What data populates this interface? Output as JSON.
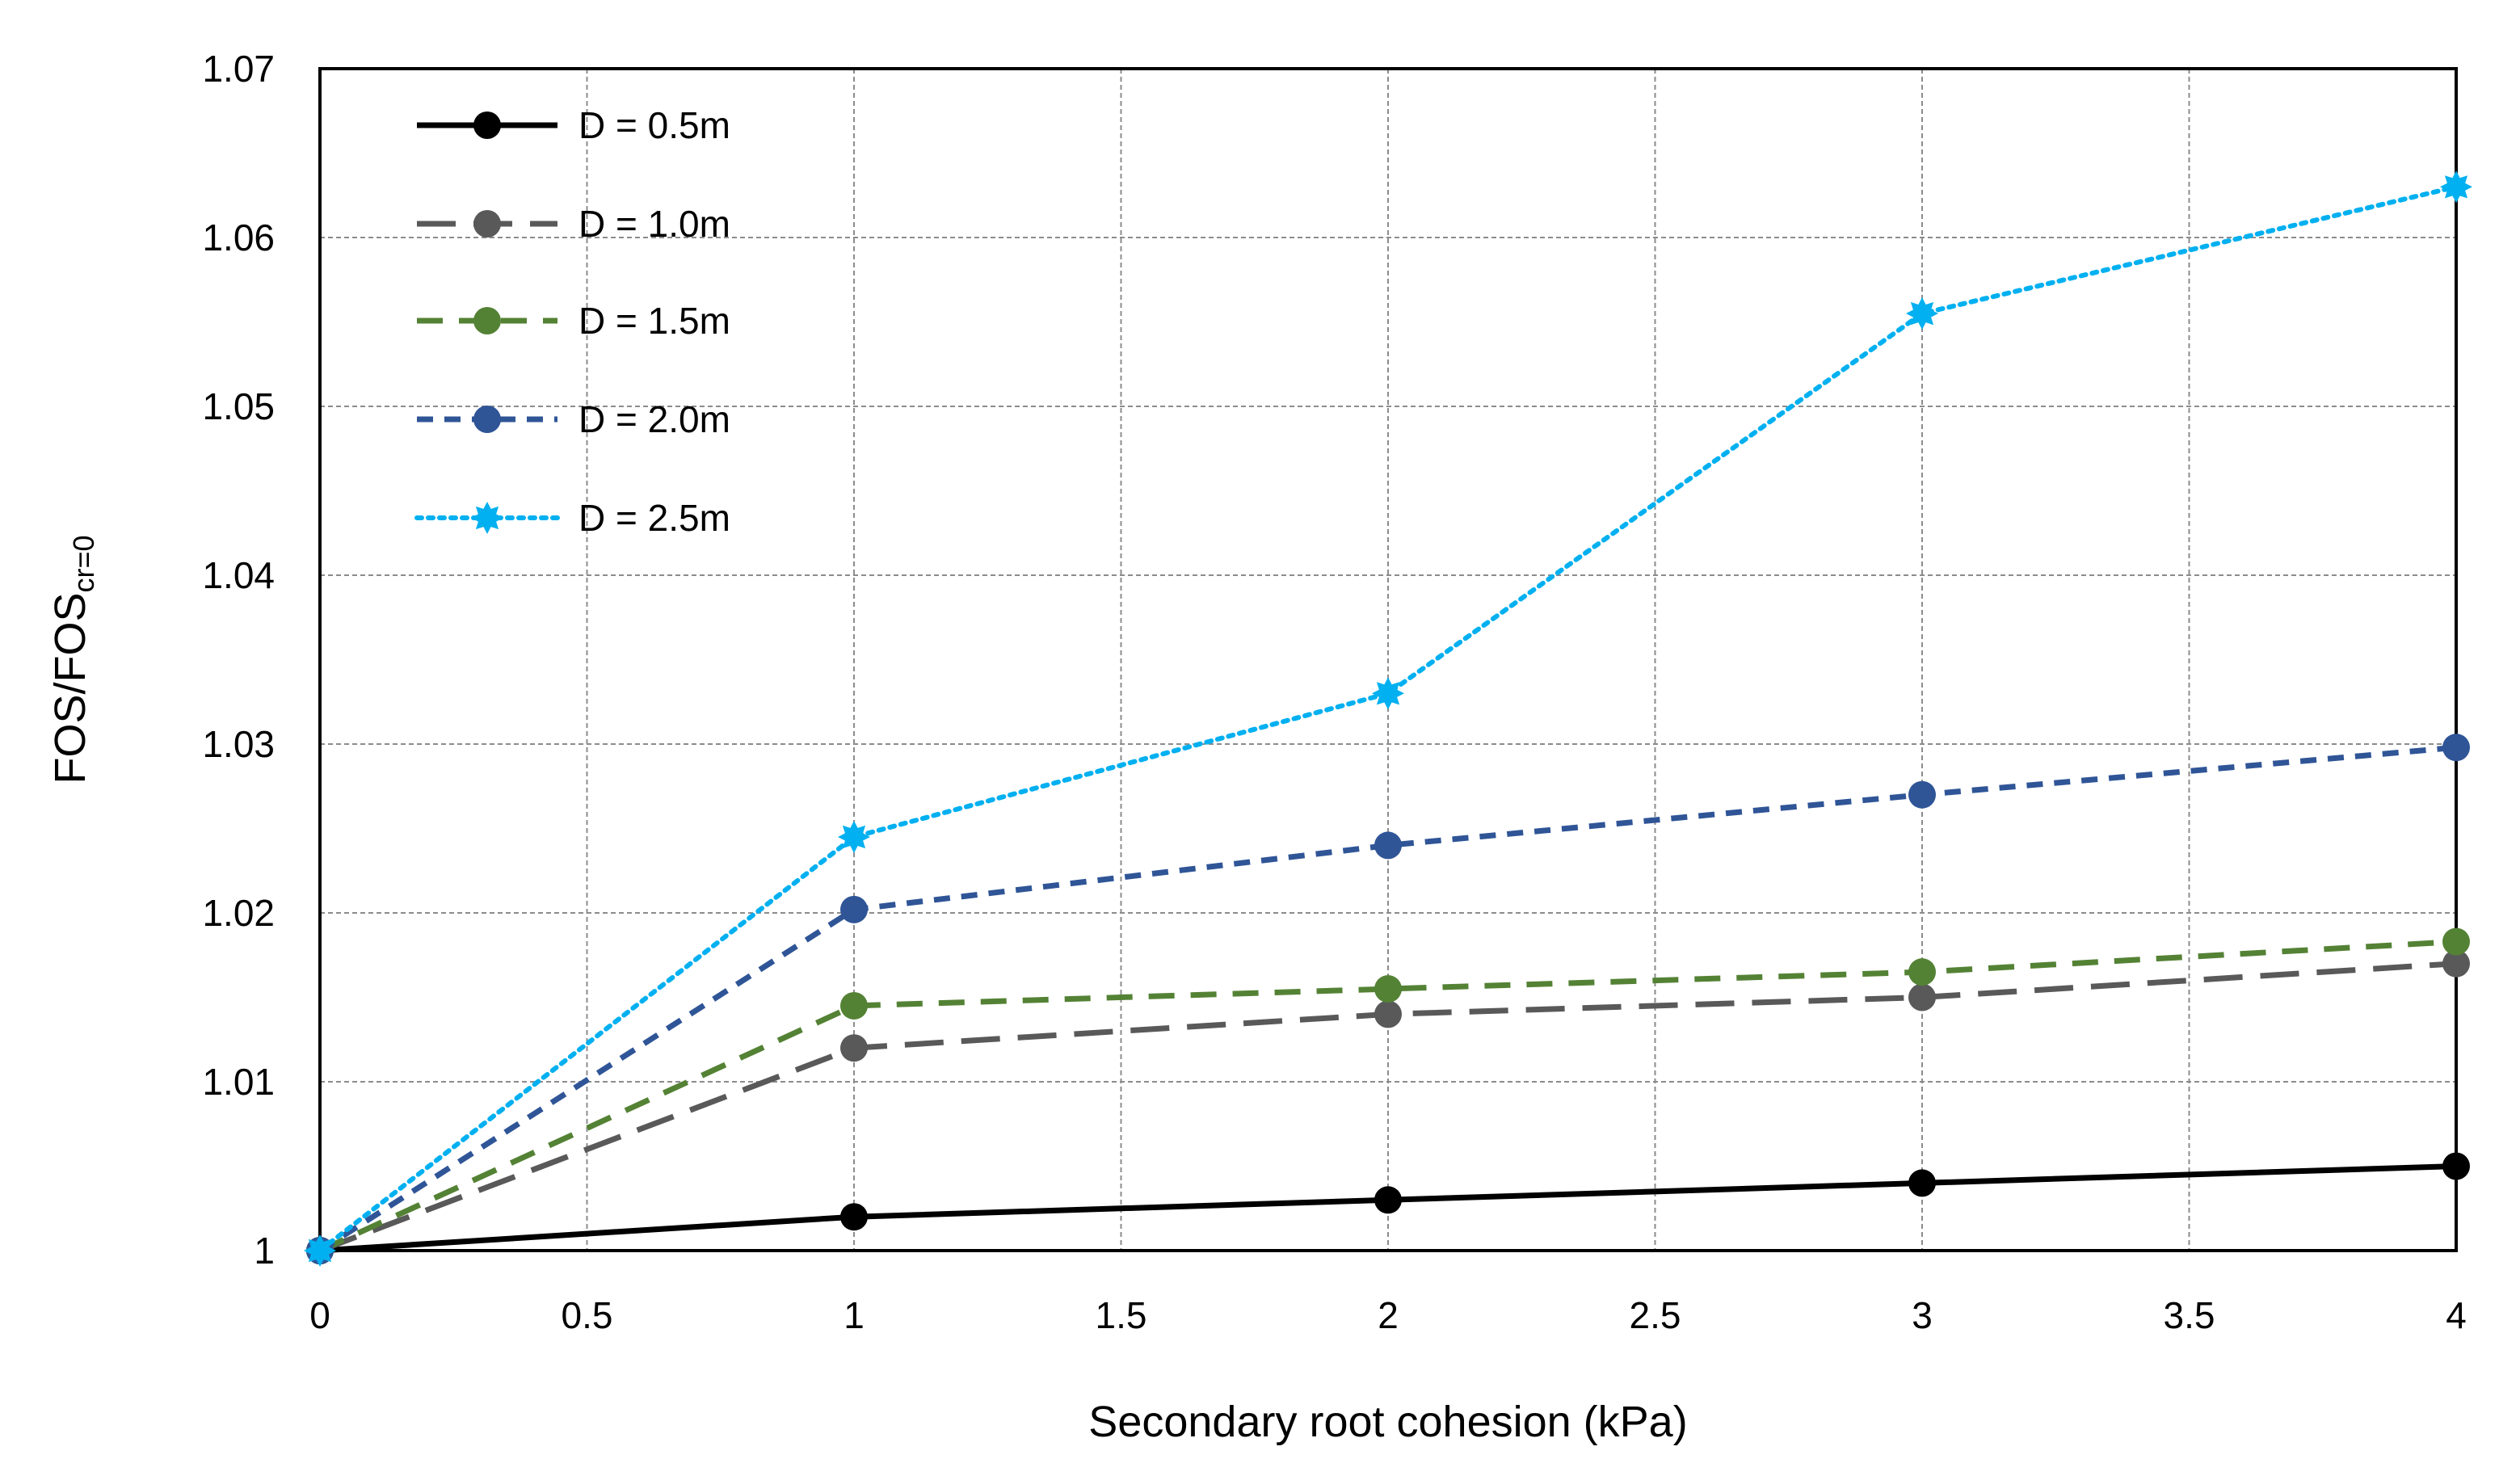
{
  "chart_data": {
    "type": "line",
    "title": "",
    "xlabel": "Secondary root cohesion (kPa)",
    "ylabel": {
      "main": "FOS/FOS",
      "subscript": "cr=0"
    },
    "x": [
      0,
      1,
      2,
      3,
      4
    ],
    "xlim": [
      0,
      4
    ],
    "ylim": [
      1,
      1.07
    ],
    "xticks": [
      "0",
      "0.5",
      "1",
      "1.5",
      "2",
      "2.5",
      "3",
      "3.5",
      "4"
    ],
    "yticks": [
      "1",
      "1.01",
      "1.02",
      "1.03",
      "1.04",
      "1.05",
      "1.06",
      "1.07"
    ],
    "grid": true,
    "legend_position": "top-left",
    "series": [
      {
        "name": "D = 0.5m",
        "color": "#000000",
        "line_style": "solid",
        "marker": "circle",
        "values": [
          1.0,
          1.002,
          1.003,
          1.004,
          1.005
        ]
      },
      {
        "name": "D = 1.0m",
        "color": "#595959",
        "line_style": "long-dash",
        "marker": "circle",
        "values": [
          1.0,
          1.012,
          1.014,
          1.015,
          1.017
        ]
      },
      {
        "name": "D = 1.5m",
        "color": "#548235",
        "line_style": "dash",
        "marker": "circle",
        "values": [
          1.0,
          1.0145,
          1.0155,
          1.0165,
          1.0183
        ]
      },
      {
        "name": "D = 2.0m",
        "color": "#2F5597",
        "line_style": "short-dash",
        "marker": "circle",
        "values": [
          1.0,
          1.0202,
          1.024,
          1.027,
          1.0298
        ]
      },
      {
        "name": "D = 2.5m",
        "color": "#00B0F0",
        "line_style": "dotted",
        "marker": "star",
        "values": [
          1.0,
          1.0245,
          1.033,
          1.0555,
          1.063
        ]
      }
    ]
  }
}
